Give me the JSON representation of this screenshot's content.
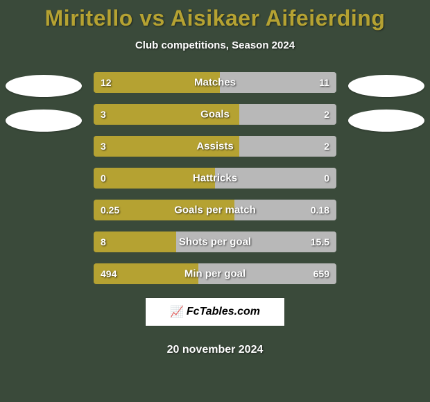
{
  "colors": {
    "background": "#3a4a3a",
    "title": "#b5a232",
    "player1_bar": "#b5a232",
    "player2_bar": "#b8b8b8",
    "bg_half_left": "#9d8a27",
    "bg_half_right": "#9a9a9a"
  },
  "title": "Miritello vs Aisikaer Aifeierding",
  "subtitle": "Club competitions, Season 2024",
  "date": "20 november 2024",
  "brand": "FcTables.com",
  "stats": [
    {
      "label": "Matches",
      "v1": "12",
      "v2": "11",
      "p1": 52,
      "p2": 48
    },
    {
      "label": "Goals",
      "v1": "3",
      "v2": "2",
      "p1": 60,
      "p2": 40
    },
    {
      "label": "Assists",
      "v1": "3",
      "v2": "2",
      "p1": 60,
      "p2": 40
    },
    {
      "label": "Hattricks",
      "v1": "0",
      "v2": "0",
      "p1": 50,
      "p2": 50
    },
    {
      "label": "Goals per match",
      "v1": "0.25",
      "v2": "0.18",
      "p1": 58,
      "p2": 42
    },
    {
      "label": "Shots per goal",
      "v1": "8",
      "v2": "15.5",
      "p1": 34,
      "p2": 66
    },
    {
      "label": "Min per goal",
      "v1": "494",
      "v2": "659",
      "p1": 43,
      "p2": 57
    }
  ],
  "fontsize": {
    "title": 32,
    "subtitle": 15,
    "stat_label": 15,
    "stat_val": 14,
    "date": 16
  }
}
